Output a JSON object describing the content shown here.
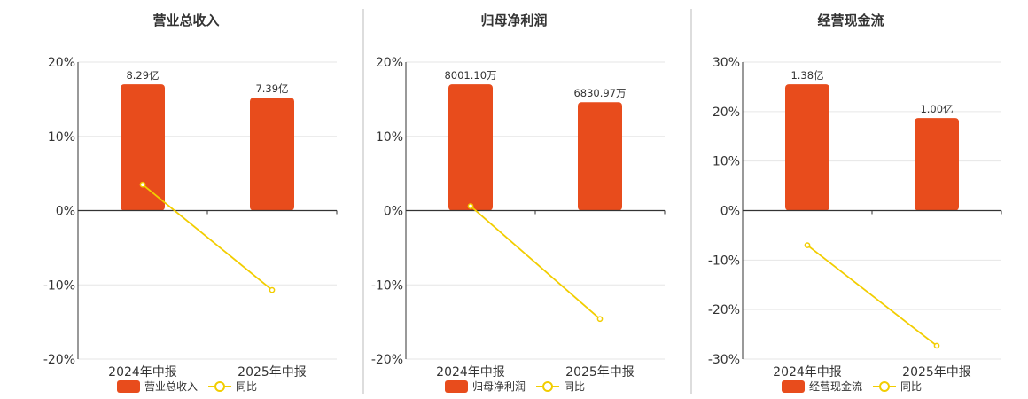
{
  "chart_data": [
    {
      "type": "bar",
      "title": "营业总收入",
      "categories": [
        "2024年中报",
        "2025年中报"
      ],
      "ylim": [
        -20,
        20
      ],
      "yticks": [
        "20%",
        "10%",
        "0%",
        "-10%",
        "-20%"
      ],
      "series": [
        {
          "name": "营业总收入",
          "type": "bar",
          "values": [
            17,
            15.2
          ],
          "labels": [
            "8.29亿",
            "7.39亿"
          ]
        },
        {
          "name": "同比",
          "type": "line",
          "values": [
            3.5,
            -10.7
          ]
        }
      ],
      "legend": "bottom",
      "grid": true
    },
    {
      "type": "bar",
      "title": "归母净利润",
      "categories": [
        "2024年中报",
        "2025年中报"
      ],
      "ylim": [
        -20,
        20
      ],
      "yticks": [
        "20%",
        "10%",
        "0%",
        "-10%",
        "-20%"
      ],
      "series": [
        {
          "name": "归母净利润",
          "type": "bar",
          "values": [
            17,
            14.6
          ],
          "labels": [
            "8001.10万",
            "6830.97万"
          ]
        },
        {
          "name": "同比",
          "type": "line",
          "values": [
            0.6,
            -14.6
          ]
        }
      ],
      "legend": "bottom",
      "grid": true
    },
    {
      "type": "bar",
      "title": "经营现金流",
      "categories": [
        "2024年中报",
        "2025年中报"
      ],
      "ylim": [
        -30,
        30
      ],
      "yticks": [
        "30%",
        "20%",
        "10%",
        "0%",
        "-10%",
        "-20%",
        "-30%"
      ],
      "series": [
        {
          "name": "经营现金流",
          "type": "bar",
          "values": [
            25.5,
            18.7
          ],
          "labels": [
            "1.38亿",
            "1.00亿"
          ]
        },
        {
          "name": "同比",
          "type": "line",
          "values": [
            -7,
            -27.3
          ]
        }
      ],
      "legend": "bottom",
      "grid": true
    }
  ],
  "colors": {
    "bar": "#e84c1c",
    "line": "#f2cd00",
    "axis": "#333333",
    "grid": "#e6e6e6",
    "divider": "#bbbbbb"
  }
}
